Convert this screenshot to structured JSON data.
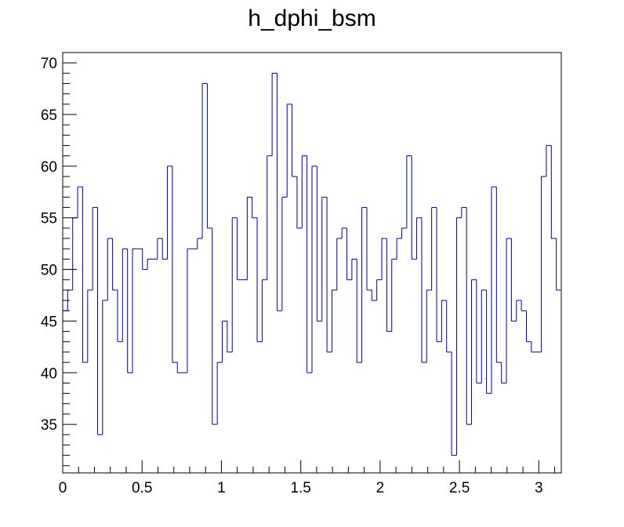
{
  "chart_data": {
    "type": "histogram",
    "title": "h_dphi_bsm",
    "xlabel": "",
    "ylabel": "",
    "xlim": [
      0,
      3.1416
    ],
    "ylim": [
      30.3,
      71
    ],
    "bins": 100,
    "x_ticks": [
      0,
      0.5,
      1,
      1.5,
      2,
      2.5,
      3
    ],
    "x_tick_labels": [
      "0",
      "0.5",
      "1",
      "1.5",
      "2",
      "2.5",
      "3"
    ],
    "y_ticks": [
      35,
      40,
      45,
      50,
      55,
      60,
      65,
      70
    ],
    "y_tick_labels": [
      "35",
      "40",
      "45",
      "50",
      "55",
      "60",
      "65",
      "70"
    ],
    "line_color": "#000080",
    "values": [
      46,
      48,
      55,
      58,
      41,
      48,
      56,
      34,
      47,
      53,
      48,
      43,
      52,
      40,
      52,
      52,
      50,
      51,
      51,
      53,
      51,
      60,
      41,
      40,
      40,
      52,
      52,
      53,
      68,
      54,
      35,
      41,
      45,
      42,
      55,
      49,
      49,
      57,
      55,
      43,
      49,
      61,
      69,
      46,
      57,
      66,
      59,
      54,
      61,
      40,
      60,
      45,
      57,
      42,
      48,
      53,
      54,
      49,
      51,
      41,
      56,
      48,
      47,
      49,
      53,
      44,
      51,
      53,
      54,
      61,
      51,
      55,
      41,
      48,
      56,
      43,
      47,
      42,
      32,
      55,
      56,
      35,
      49,
      39,
      48,
      38,
      58,
      41,
      39,
      53,
      45,
      47,
      46,
      43,
      42,
      42,
      59,
      62,
      53,
      48
    ]
  }
}
